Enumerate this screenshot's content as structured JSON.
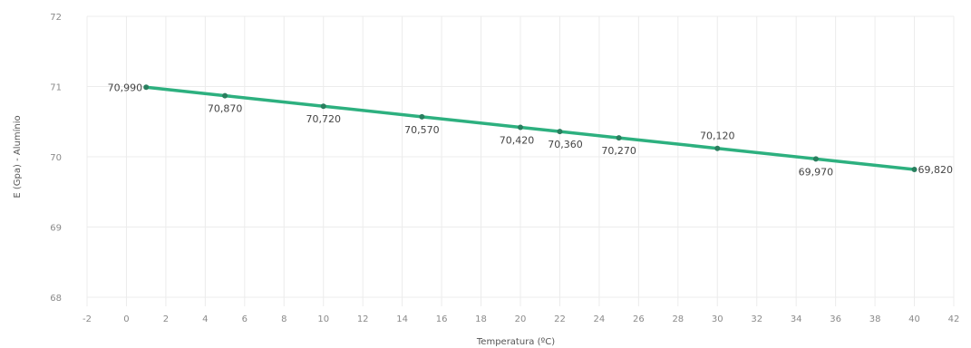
{
  "chart_data": {
    "type": "line",
    "xlabel": "Temperatura (ºC)",
    "ylabel": "E (Gpa) - Alumínio",
    "xlim": [
      -2,
      42
    ],
    "ylim": [
      68,
      72
    ],
    "xticks": [
      -2,
      0,
      2,
      4,
      6,
      8,
      10,
      12,
      14,
      16,
      18,
      20,
      22,
      24,
      26,
      28,
      30,
      32,
      34,
      36,
      38,
      40,
      42
    ],
    "yticks": [
      68,
      69,
      70,
      71,
      72
    ],
    "grid": true,
    "series": [
      {
        "x": [
          1,
          5,
          10,
          15,
          20,
          22,
          25,
          30,
          35,
          40
        ],
        "y": [
          70.99,
          70.87,
          70.72,
          70.57,
          70.42,
          70.36,
          70.27,
          70.12,
          69.97,
          69.82
        ],
        "labels": [
          "70,990",
          "70,870",
          "70,720",
          "70,570",
          "70,420",
          "70,360",
          "70,270",
          "70,120",
          "69,970",
          "69,820"
        ],
        "color": "#2db07f"
      }
    ]
  }
}
